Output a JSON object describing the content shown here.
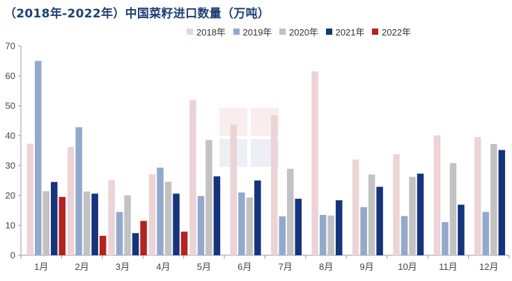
{
  "title": "（2018年-2022年）中国菜籽进口数量（万吨）",
  "colors": {
    "2018年": "#ecd3d6",
    "2019年": "#93a9cc",
    "2020年": "#c2c2c2",
    "2021年": "#15347c",
    "2022年": "#b3231f"
  },
  "chart_data": {
    "type": "bar",
    "title": "（2018年-2022年）中国菜籽进口数量（万吨）",
    "xlabel": "",
    "ylabel": "",
    "ylim": [
      0,
      70
    ],
    "yticks": [
      0,
      10,
      20,
      30,
      40,
      50,
      60,
      70
    ],
    "grid": false,
    "legend": "top-right",
    "categories": [
      "1月",
      "2月",
      "3月",
      "4月",
      "5月",
      "6月",
      "7月",
      "8月",
      "9月",
      "10月",
      "11月",
      "12月"
    ],
    "series": [
      {
        "name": "2018年",
        "values": [
          37.3,
          36.2,
          25.1,
          27.1,
          52.0,
          43.7,
          46.8,
          61.5,
          32.0,
          33.8,
          40.1,
          39.5
        ]
      },
      {
        "name": "2019年",
        "values": [
          65.0,
          42.8,
          14.5,
          29.3,
          19.8,
          21.0,
          13.0,
          13.5,
          16.1,
          13.1,
          11.1,
          14.5
        ]
      },
      {
        "name": "2020年",
        "values": [
          21.4,
          21.3,
          20.0,
          24.6,
          38.5,
          19.3,
          28.9,
          13.3,
          27.0,
          26.2,
          30.8,
          37.2
        ]
      },
      {
        "name": "2021年",
        "values": [
          24.5,
          20.6,
          7.4,
          20.6,
          26.4,
          25.0,
          18.9,
          18.4,
          22.9,
          27.3,
          16.9,
          35.2
        ]
      },
      {
        "name": "2022年",
        "values": [
          19.5,
          6.5,
          11.5,
          7.9,
          null,
          null,
          null,
          null,
          null,
          null,
          null,
          null
        ]
      }
    ]
  }
}
